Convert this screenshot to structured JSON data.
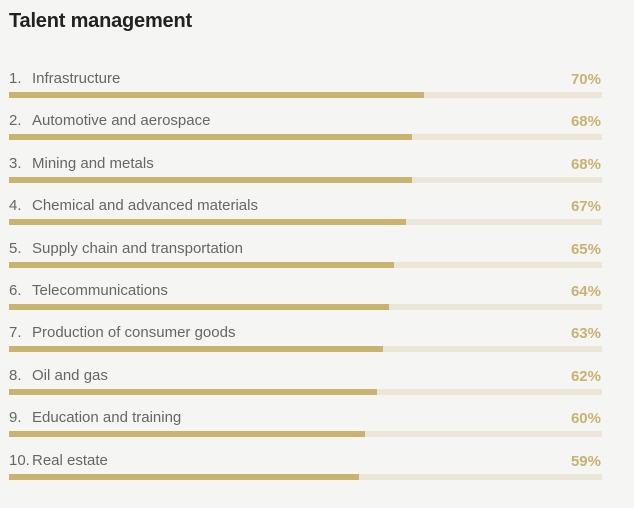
{
  "chart_data": {
    "type": "bar",
    "orientation": "horizontal",
    "title": "Talent management",
    "categories": [
      "Infrastructure",
      "Automotive and aerospace",
      "Mining and metals",
      "Chemical and advanced materials",
      "Supply chain and transportation",
      "Telecommunications",
      "Production of consumer goods",
      "Oil and gas",
      "Education and training",
      "Real estate"
    ],
    "ranks": [
      "1.",
      "2.",
      "3.",
      "4.",
      "5.",
      "6.",
      "7.",
      "8.",
      "9.",
      "10."
    ],
    "values": [
      70,
      68,
      68,
      67,
      65,
      64,
      63,
      62,
      60,
      59
    ],
    "value_labels": [
      "70%",
      "68%",
      "68%",
      "67%",
      "65%",
      "64%",
      "63%",
      "62%",
      "60%",
      "59%"
    ],
    "xlim": [
      0,
      100
    ],
    "colors": {
      "bar": "#c9b36e",
      "track": "#ebe6d8",
      "value_text": "#c8b272"
    }
  }
}
